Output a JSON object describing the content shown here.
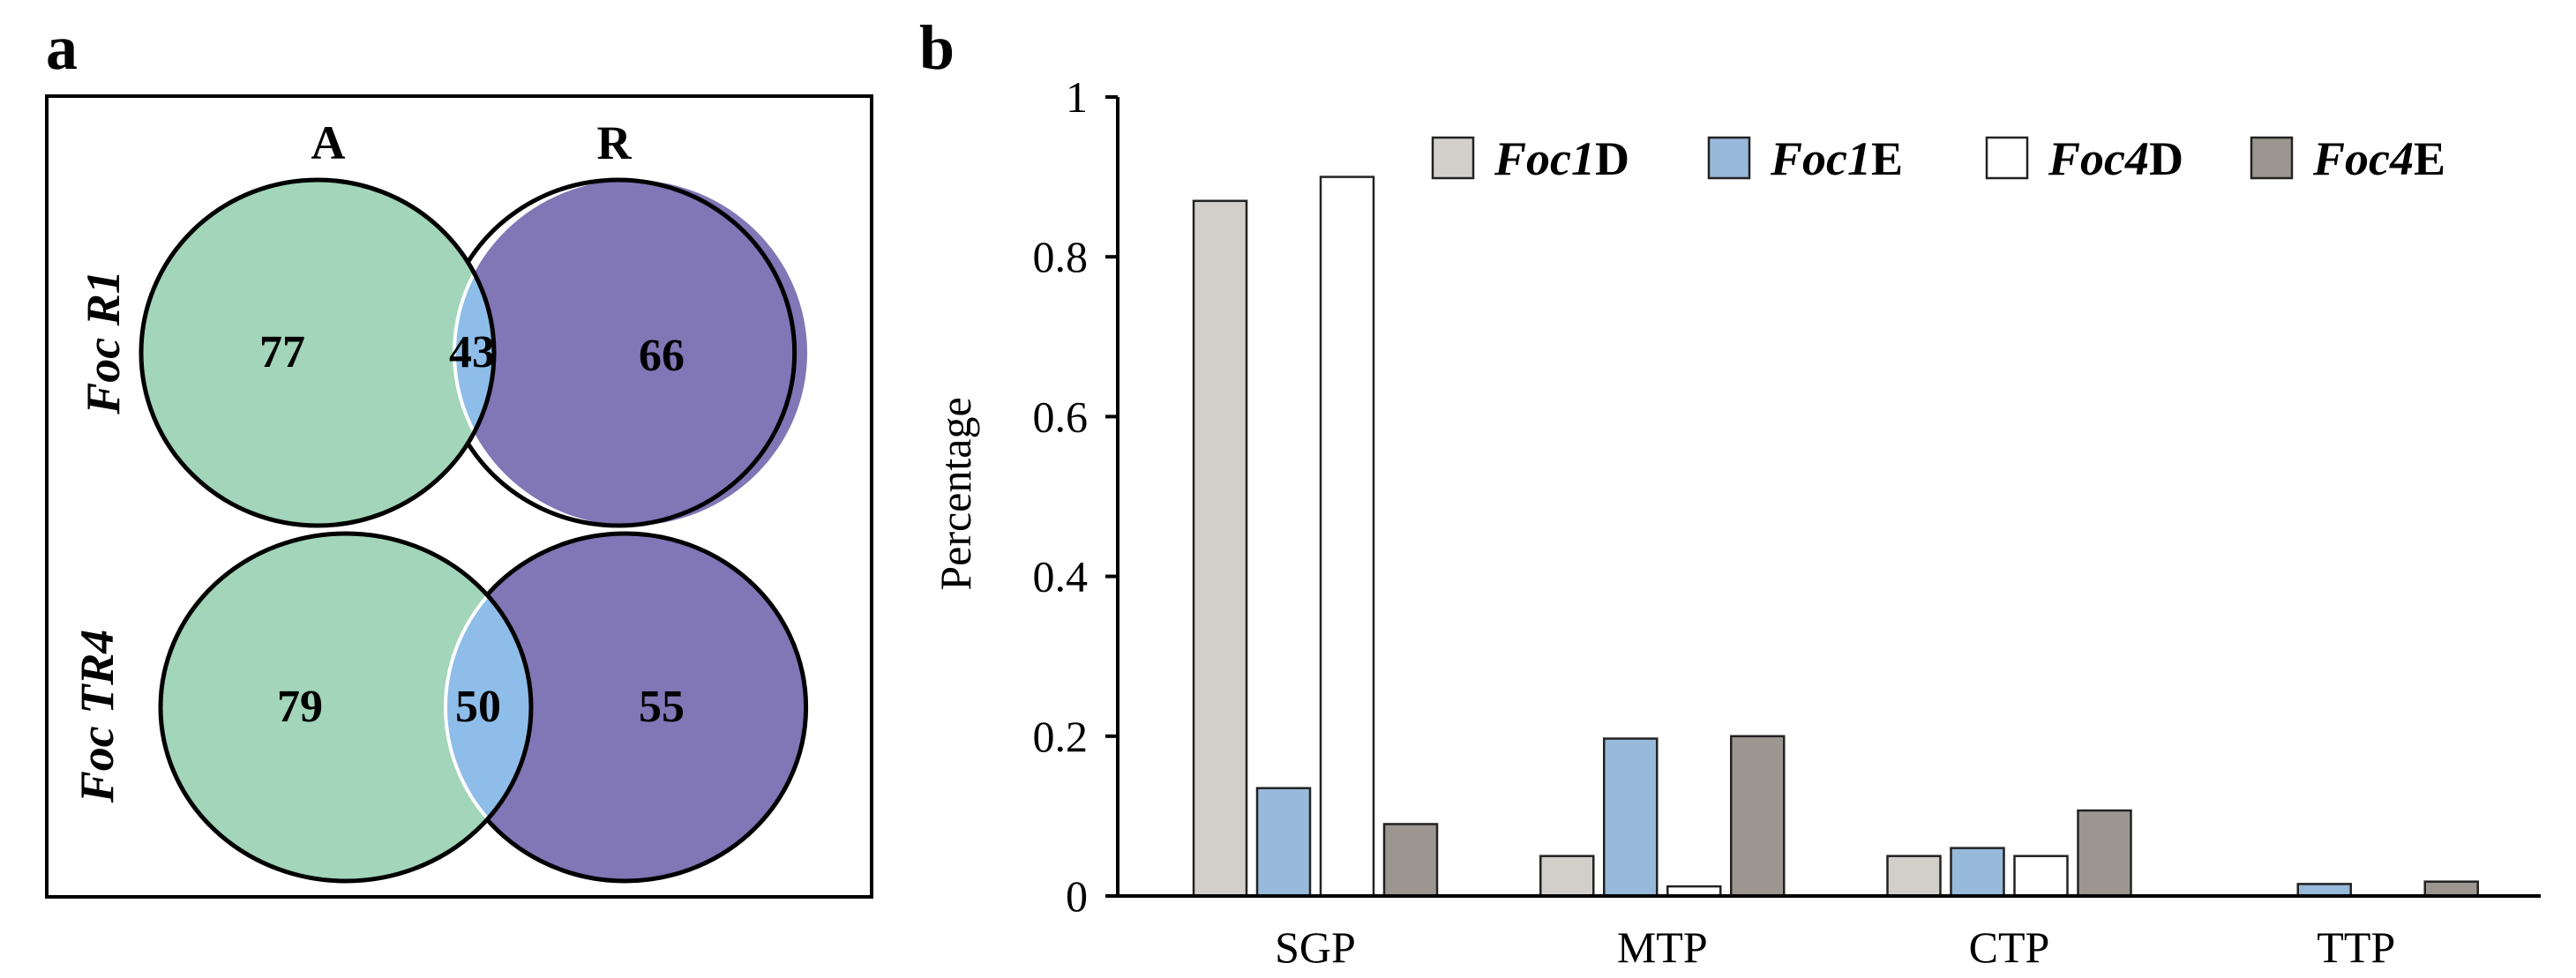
{
  "panels": {
    "a": "a",
    "b": "b"
  },
  "venn": {
    "col_headers": [
      "A",
      "R"
    ],
    "colors": {
      "left": "#a2d5b9",
      "right": "#8176b6",
      "overlap": "#8ebde9"
    },
    "rows": [
      {
        "label": "Foc R1",
        "left": "77",
        "overlap": "43",
        "right": "66"
      },
      {
        "label": "Foc TR4",
        "left": "79",
        "overlap": "50",
        "right": "55"
      }
    ]
  },
  "chart_data": {
    "type": "bar",
    "title": "",
    "xlabel": "",
    "ylabel": "Percentage",
    "ylim": [
      0,
      1
    ],
    "yticks": [
      "0",
      "0.2",
      "0.4",
      "0.6",
      "0.8",
      "1"
    ],
    "legend_position": "top-right",
    "categories": [
      "SGP",
      "MTP",
      "CTP",
      "TTP"
    ],
    "series": [
      {
        "name": "Foc1D",
        "name_italic": "Foc1",
        "name_suffix": "D",
        "color": "#d2cfcb",
        "values": [
          0.87,
          0.05,
          0.05,
          0.0
        ]
      },
      {
        "name": "Foc1E",
        "name_italic": "Foc1",
        "name_suffix": "E",
        "color": "#97b9da",
        "values": [
          0.135,
          0.197,
          0.06,
          0.015
        ]
      },
      {
        "name": "Foc4D",
        "name_italic": "Foc4",
        "name_suffix": "D",
        "color": "#ffffff",
        "values": [
          0.9,
          0.012,
          0.05,
          0.0
        ]
      },
      {
        "name": "Foc4E",
        "name_italic": "Foc4",
        "name_suffix": "E",
        "color": "#9c9690",
        "values": [
          0.09,
          0.2,
          0.107,
          0.018
        ]
      }
    ]
  }
}
